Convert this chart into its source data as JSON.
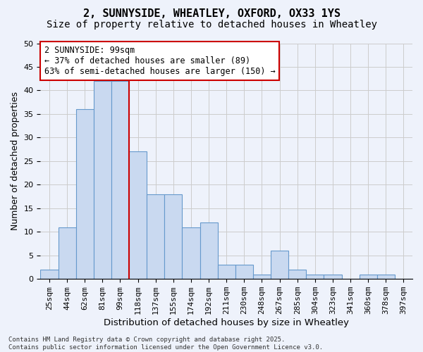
{
  "title": "2, SUNNYSIDE, WHEATLEY, OXFORD, OX33 1YS",
  "subtitle": "Size of property relative to detached houses in Wheatley",
  "xlabel": "Distribution of detached houses by size in Wheatley",
  "ylabel": "Number of detached properties",
  "categories": [
    "25sqm",
    "44sqm",
    "62sqm",
    "81sqm",
    "99sqm",
    "118sqm",
    "137sqm",
    "155sqm",
    "174sqm",
    "192sqm",
    "211sqm",
    "230sqm",
    "248sqm",
    "267sqm",
    "285sqm",
    "304sqm",
    "323sqm",
    "341sqm",
    "360sqm",
    "378sqm",
    "397sqm"
  ],
  "values": [
    2,
    11,
    36,
    42,
    42,
    27,
    18,
    18,
    11,
    12,
    3,
    3,
    1,
    6,
    2,
    1,
    1,
    0,
    1,
    1,
    0
  ],
  "bar_color": "#c9d9f0",
  "bar_edge_color": "#6699cc",
  "vline_index": 4,
  "vline_color": "#cc0000",
  "annotation_text": "2 SUNNYSIDE: 99sqm\n← 37% of detached houses are smaller (89)\n63% of semi-detached houses are larger (150) →",
  "annotation_box_color": "#ffffff",
  "annotation_box_edge": "#cc0000",
  "annotation_fontsize": 8.5,
  "ylim": [
    0,
    50
  ],
  "yticks": [
    0,
    5,
    10,
    15,
    20,
    25,
    30,
    35,
    40,
    45,
    50
  ],
  "grid_color": "#cccccc",
  "background_color": "#eef2fb",
  "footnote": "Contains HM Land Registry data © Crown copyright and database right 2025.\nContains public sector information licensed under the Open Government Licence v3.0.",
  "title_fontsize": 11,
  "subtitle_fontsize": 10,
  "xlabel_fontsize": 9.5,
  "ylabel_fontsize": 9,
  "tick_fontsize": 8
}
